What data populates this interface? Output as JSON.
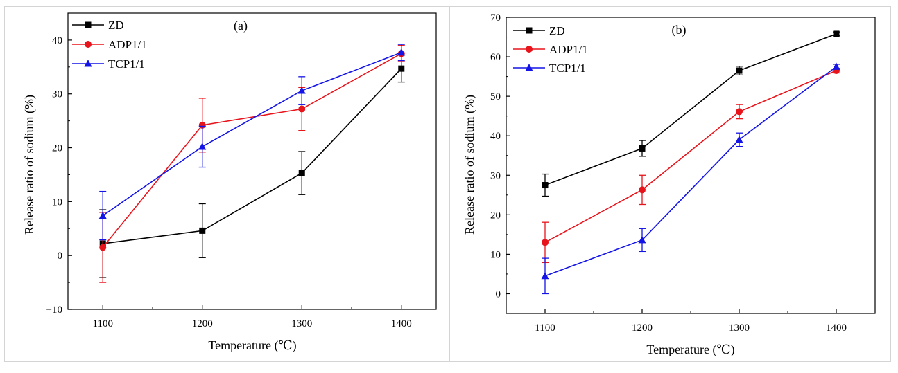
{
  "figure": {
    "colors": {
      "frame": "#d4d4d4",
      "axis": "#000000"
    }
  },
  "chart_data": [
    {
      "type": "line",
      "panel_label": "(a)",
      "title": "",
      "xlabel": "Temperature (℃)",
      "ylabel": "Release ratio of sodium (%)",
      "x": [
        1100,
        1200,
        1300,
        1400
      ],
      "xlim": [
        1065,
        1435
      ],
      "ylim": [
        -10,
        45
      ],
      "xticks": [
        "1100",
        "1200",
        "1300",
        "1400"
      ],
      "yticks": [
        "−10",
        "0",
        "10",
        "20",
        "30",
        "40"
      ],
      "ytick_values": [
        -10,
        0,
        10,
        20,
        30,
        40
      ],
      "grid": false,
      "legend_position": "top-left",
      "series": [
        {
          "name": "ZD",
          "color": "#000000",
          "marker": "square",
          "values": [
            2.2,
            4.6,
            15.3,
            34.7
          ],
          "errors": [
            6.3,
            5.0,
            4.0,
            2.5
          ]
        },
        {
          "name": "ADP1/1",
          "color": "#e8141c",
          "marker": "circle",
          "values": [
            1.5,
            24.2,
            27.2,
            37.5
          ],
          "errors": [
            6.5,
            5.0,
            4.0,
            1.5
          ]
        },
        {
          "name": "TCP1/1",
          "color": "#1414e6",
          "marker": "triangle",
          "values": [
            7.4,
            20.2,
            30.6,
            37.7
          ],
          "errors": [
            4.5,
            3.8,
            2.6,
            1.5
          ]
        }
      ]
    },
    {
      "type": "line",
      "panel_label": "(b)",
      "title": "",
      "xlabel": "Temperature (℃)",
      "ylabel": "Release ratio of sodium (%)",
      "x": [
        1100,
        1200,
        1300,
        1400
      ],
      "xlim": [
        1060,
        1440
      ],
      "ylim": [
        -5,
        70
      ],
      "xticks": [
        "1100",
        "1200",
        "1300",
        "1400"
      ],
      "yticks": [
        "0",
        "10",
        "20",
        "30",
        "40",
        "50",
        "60",
        "70"
      ],
      "ytick_values": [
        0,
        10,
        20,
        30,
        40,
        50,
        60,
        70
      ],
      "grid": false,
      "legend_position": "top-left",
      "series": [
        {
          "name": "ZD",
          "color": "#000000",
          "marker": "square",
          "values": [
            27.5,
            36.8,
            56.5,
            65.8
          ],
          "errors": [
            2.8,
            2.0,
            1.1,
            0.5
          ]
        },
        {
          "name": "ADP1/1",
          "color": "#e8141c",
          "marker": "circle",
          "values": [
            13.0,
            26.3,
            46.1,
            56.5
          ],
          "errors": [
            5.1,
            3.7,
            1.8,
            0.6
          ]
        },
        {
          "name": "TCP1/1",
          "color": "#1414e6",
          "marker": "triangle",
          "values": [
            4.5,
            13.6,
            39.0,
            57.5
          ],
          "errors": [
            4.5,
            2.9,
            1.7,
            0.6
          ]
        }
      ]
    }
  ]
}
